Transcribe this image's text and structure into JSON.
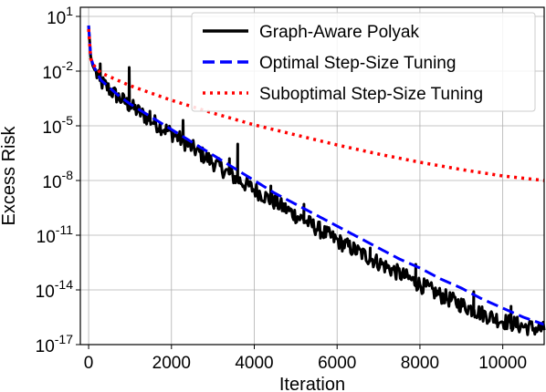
{
  "chart_data": {
    "type": "line",
    "xlabel": "Iteration",
    "ylabel": "Excess Risk",
    "xlim": [
      -200,
      11000
    ],
    "ylim_log10": [
      -17,
      1.5
    ],
    "yscale": "log",
    "grid": true,
    "legend_position": "top-right",
    "xticks": [
      {
        "value": 0,
        "label": "0"
      },
      {
        "value": 2000,
        "label": "2000"
      },
      {
        "value": 4000,
        "label": "4000"
      },
      {
        "value": 6000,
        "label": "6000"
      },
      {
        "value": 8000,
        "label": "8000"
      },
      {
        "value": 10000,
        "label": "10000"
      }
    ],
    "yticks": [
      {
        "exp": 1,
        "base": "10",
        "sup": "1"
      },
      {
        "exp": -2,
        "base": "10",
        "sup": "-2"
      },
      {
        "exp": -5,
        "base": "10",
        "sup": "-5"
      },
      {
        "exp": -8,
        "base": "10",
        "sup": "-8"
      },
      {
        "exp": -11,
        "base": "10",
        "sup": "-11"
      },
      {
        "exp": -14,
        "base": "10",
        "sup": "-14"
      },
      {
        "exp": -17,
        "base": "10",
        "sup": "-17"
      }
    ],
    "series": [
      {
        "name": "Graph-Aware Polyak",
        "color": "#000000",
        "style": "solid",
        "x": [
          0,
          50,
          100,
          200,
          300,
          500,
          700,
          1000,
          1500,
          2000,
          2500,
          3000,
          3500,
          4000,
          4500,
          5000,
          5500,
          6000,
          6500,
          7000,
          7500,
          8000,
          8500,
          9000,
          9500,
          10000,
          10500,
          11000
        ],
        "log10_y": [
          0.5,
          -1.2,
          -1.7,
          -2.2,
          -2.6,
          -3.0,
          -3.4,
          -3.9,
          -4.7,
          -5.4,
          -6.2,
          -7.0,
          -7.8,
          -8.5,
          -9.2,
          -9.9,
          -10.6,
          -11.3,
          -11.9,
          -12.5,
          -13.1,
          -13.7,
          -14.3,
          -14.8,
          -15.3,
          -15.7,
          -16.0,
          -16.2
        ],
        "spikes": [
          {
            "x": 280,
            "log10_y": -1.6
          },
          {
            "x": 980,
            "log10_y": -1.8
          },
          {
            "x": 1480,
            "log10_y": -4.2
          },
          {
            "x": 2280,
            "log10_y": -4.7
          },
          {
            "x": 3400,
            "log10_y": -6.8
          },
          {
            "x": 3600,
            "log10_y": -6.0
          },
          {
            "x": 4400,
            "log10_y": -8.3
          },
          {
            "x": 5200,
            "log10_y": -9.3
          },
          {
            "x": 6800,
            "log10_y": -11.7
          },
          {
            "x": 7900,
            "log10_y": -12.6
          },
          {
            "x": 9300,
            "log10_y": -14.1
          },
          {
            "x": 10200,
            "log10_y": -14.9
          }
        ]
      },
      {
        "name": "Optimal Step-Size Tuning",
        "color": "#0000ff",
        "style": "dashed",
        "x": [
          0,
          50,
          100,
          200,
          300,
          500,
          700,
          1000,
          1500,
          2000,
          2500,
          3000,
          3500,
          4000,
          4500,
          5000,
          5500,
          6000,
          6500,
          7000,
          7500,
          8000,
          8500,
          9000,
          9500,
          10000,
          10500,
          11000
        ],
        "log10_y": [
          0.5,
          -1.2,
          -1.6,
          -2.1,
          -2.5,
          -2.9,
          -3.3,
          -3.8,
          -4.5,
          -5.2,
          -5.9,
          -6.6,
          -7.3,
          -8.0,
          -8.7,
          -9.3,
          -9.9,
          -10.5,
          -11.1,
          -11.7,
          -12.3,
          -12.8,
          -13.4,
          -13.9,
          -14.5,
          -15.0,
          -15.5,
          -15.9
        ]
      },
      {
        "name": "Suboptimal Step-Size Tuning",
        "color": "#ff0000",
        "style": "dotted",
        "x": [
          0,
          50,
          100,
          200,
          300,
          500,
          700,
          1000,
          1500,
          2000,
          2500,
          3000,
          4000,
          5000,
          6000,
          7000,
          8000,
          9000,
          10000,
          11000
        ],
        "log10_y": [
          0.3,
          -1.3,
          -1.6,
          -1.9,
          -2.1,
          -2.3,
          -2.5,
          -2.8,
          -3.2,
          -3.6,
          -3.95,
          -4.3,
          -4.95,
          -5.5,
          -6.05,
          -6.55,
          -7.0,
          -7.4,
          -7.75,
          -8.0
        ]
      }
    ]
  }
}
